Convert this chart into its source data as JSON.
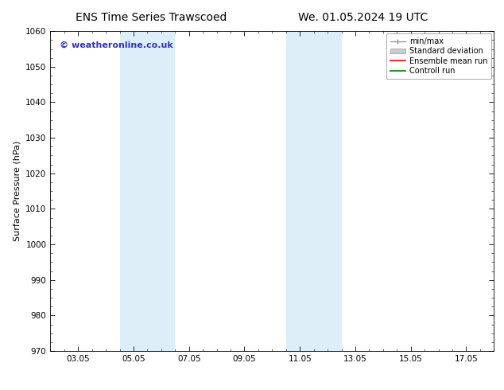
{
  "title_left": "ENS Time Series Trawscoed",
  "title_right": "We. 01.05.2024 19 UTC",
  "ylabel": "Surface Pressure (hPa)",
  "ylim": [
    970,
    1060
  ],
  "yticks": [
    970,
    980,
    990,
    1000,
    1010,
    1020,
    1030,
    1040,
    1050,
    1060
  ],
  "xtick_labels": [
    "03.05",
    "05.05",
    "07.05",
    "09.05",
    "11.05",
    "13.05",
    "15.05",
    "17.05"
  ],
  "xtick_positions": [
    0,
    2,
    4,
    6,
    8,
    10,
    12,
    14
  ],
  "xlim": [
    -1,
    15
  ],
  "shaded_bands": [
    {
      "x_start": 1.5,
      "x_end": 3.5,
      "color": "#ddeef8"
    },
    {
      "x_start": 7.5,
      "x_end": 9.5,
      "color": "#ddeef8"
    }
  ],
  "background_color": "#ffffff",
  "plot_bg_color": "#ffffff",
  "watermark_text": "© weatheronline.co.uk",
  "watermark_color": "#3333bb",
  "legend_items": [
    {
      "label": "min/max",
      "color": "#aaaaaa",
      "style": "minmax"
    },
    {
      "label": "Standard deviation",
      "color": "#cccccc",
      "style": "stddev"
    },
    {
      "label": "Ensemble mean run",
      "color": "#ff0000",
      "style": "line"
    },
    {
      "label": "Controll run",
      "color": "#008000",
      "style": "line"
    }
  ],
  "title_fontsize": 10,
  "ylabel_fontsize": 8,
  "tick_fontsize": 7.5,
  "legend_fontsize": 7,
  "watermark_fontsize": 8
}
